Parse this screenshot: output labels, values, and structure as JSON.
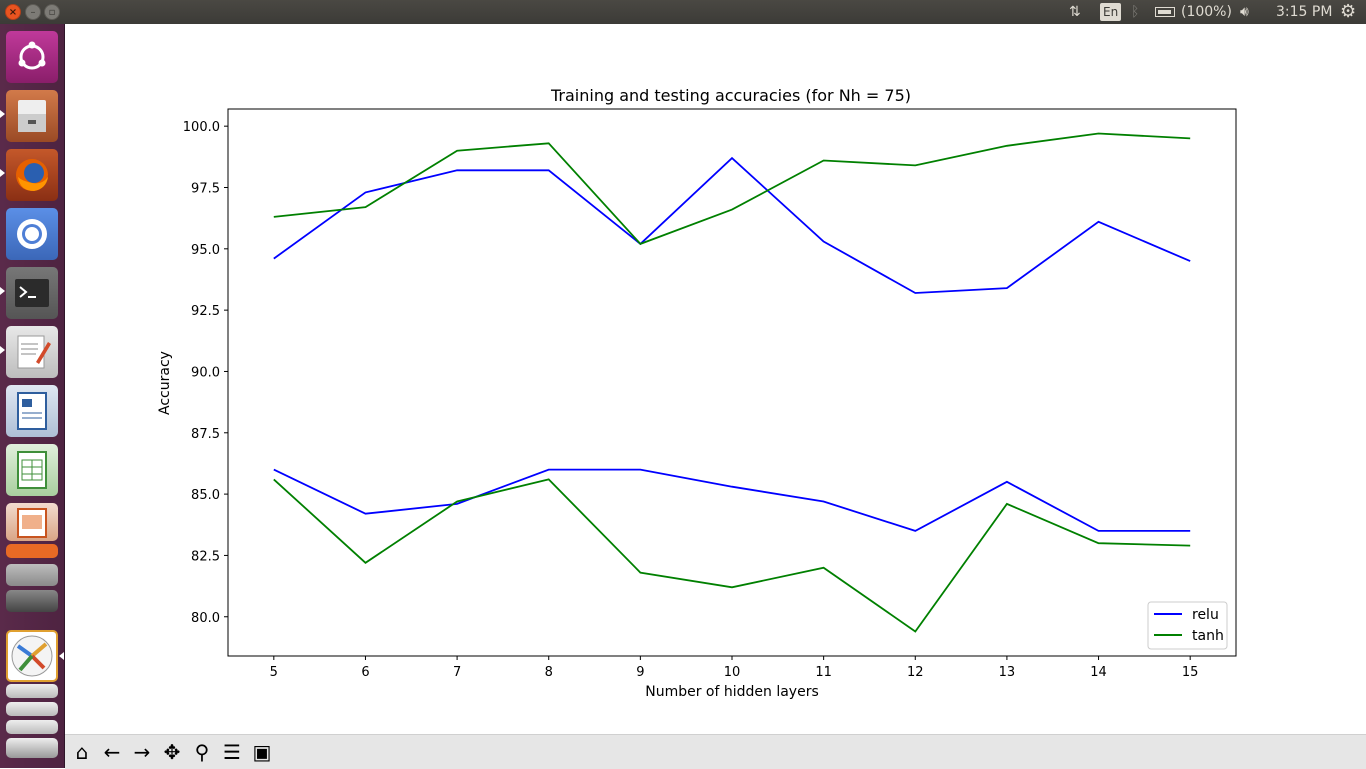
{
  "top_panel": {
    "keyboard_layout": "En",
    "battery": "(100%)",
    "clock": "3:15 PM"
  },
  "launcher": {
    "items": [
      {
        "name": "ubuntu-dash",
        "color": "#a5287f"
      },
      {
        "name": "files",
        "color": "#b5562a"
      },
      {
        "name": "firefox",
        "color": "#a33d1e"
      },
      {
        "name": "chromium",
        "color": "#4f7fd6"
      },
      {
        "name": "terminal",
        "color": "#2b2b2b"
      },
      {
        "name": "text-editor",
        "color": "#c9c9c9"
      },
      {
        "name": "libreoffice-writer",
        "color": "#2e5e9e"
      },
      {
        "name": "libreoffice-calc",
        "color": "#3f8f3a"
      },
      {
        "name": "libreoffice-impress",
        "color": "#c8541f"
      },
      {
        "name": "amazon",
        "color": "#e86a25"
      },
      {
        "name": "system-settings",
        "color": "#b33a3a"
      },
      {
        "name": "matplotlib-figure",
        "color": "#ffffff"
      }
    ]
  },
  "toolbar": {
    "buttons": [
      "home-icon",
      "back-icon",
      "forward-icon",
      "pan-icon",
      "zoom-icon",
      "configure-icon",
      "save-icon"
    ]
  },
  "chart_data": {
    "type": "line",
    "title": "Training and testing accuracies (for Nh = 75)",
    "xlabel": "Number of hidden layers",
    "ylabel": "Accuracy",
    "x": [
      5,
      6,
      7,
      8,
      9,
      10,
      11,
      12,
      13,
      14,
      15
    ],
    "xlim": [
      4.5,
      15.5
    ],
    "ylim": [
      78.4,
      100.7
    ],
    "xticks": [
      "5",
      "6",
      "7",
      "8",
      "9",
      "10",
      "11",
      "12",
      "13",
      "14",
      "15"
    ],
    "yticks": [
      "80.0",
      "82.5",
      "85.0",
      "87.5",
      "90.0",
      "92.5",
      "95.0",
      "97.5",
      "100.0"
    ],
    "yticks_values": [
      80,
      82.5,
      85,
      87.5,
      90,
      92.5,
      95,
      97.5,
      100
    ],
    "grid": false,
    "legend_position": "lower right",
    "legend": [
      {
        "label": "relu",
        "color": "#0000ff"
      },
      {
        "label": "tanh",
        "color": "#008000"
      }
    ],
    "series": [
      {
        "name": "relu",
        "color": "#0000ff",
        "values": [
          94.6,
          97.3,
          98.2,
          98.2,
          95.2,
          98.7,
          95.3,
          93.2,
          93.4,
          96.1,
          94.5
        ]
      },
      {
        "name": "relu",
        "color": "#0000ff",
        "values": [
          86.0,
          84.2,
          84.6,
          86.0,
          86.0,
          85.3,
          84.7,
          83.5,
          85.5,
          83.5,
          83.5
        ]
      },
      {
        "name": "tanh",
        "color": "#008000",
        "values": [
          96.3,
          96.7,
          99.0,
          99.3,
          95.2,
          96.6,
          98.6,
          98.4,
          99.2,
          99.7,
          99.5
        ]
      },
      {
        "name": "tanh",
        "color": "#008000",
        "values": [
          85.6,
          82.2,
          84.7,
          85.6,
          81.8,
          81.2,
          82.0,
          79.4,
          84.6,
          83.0,
          82.9
        ]
      }
    ]
  }
}
